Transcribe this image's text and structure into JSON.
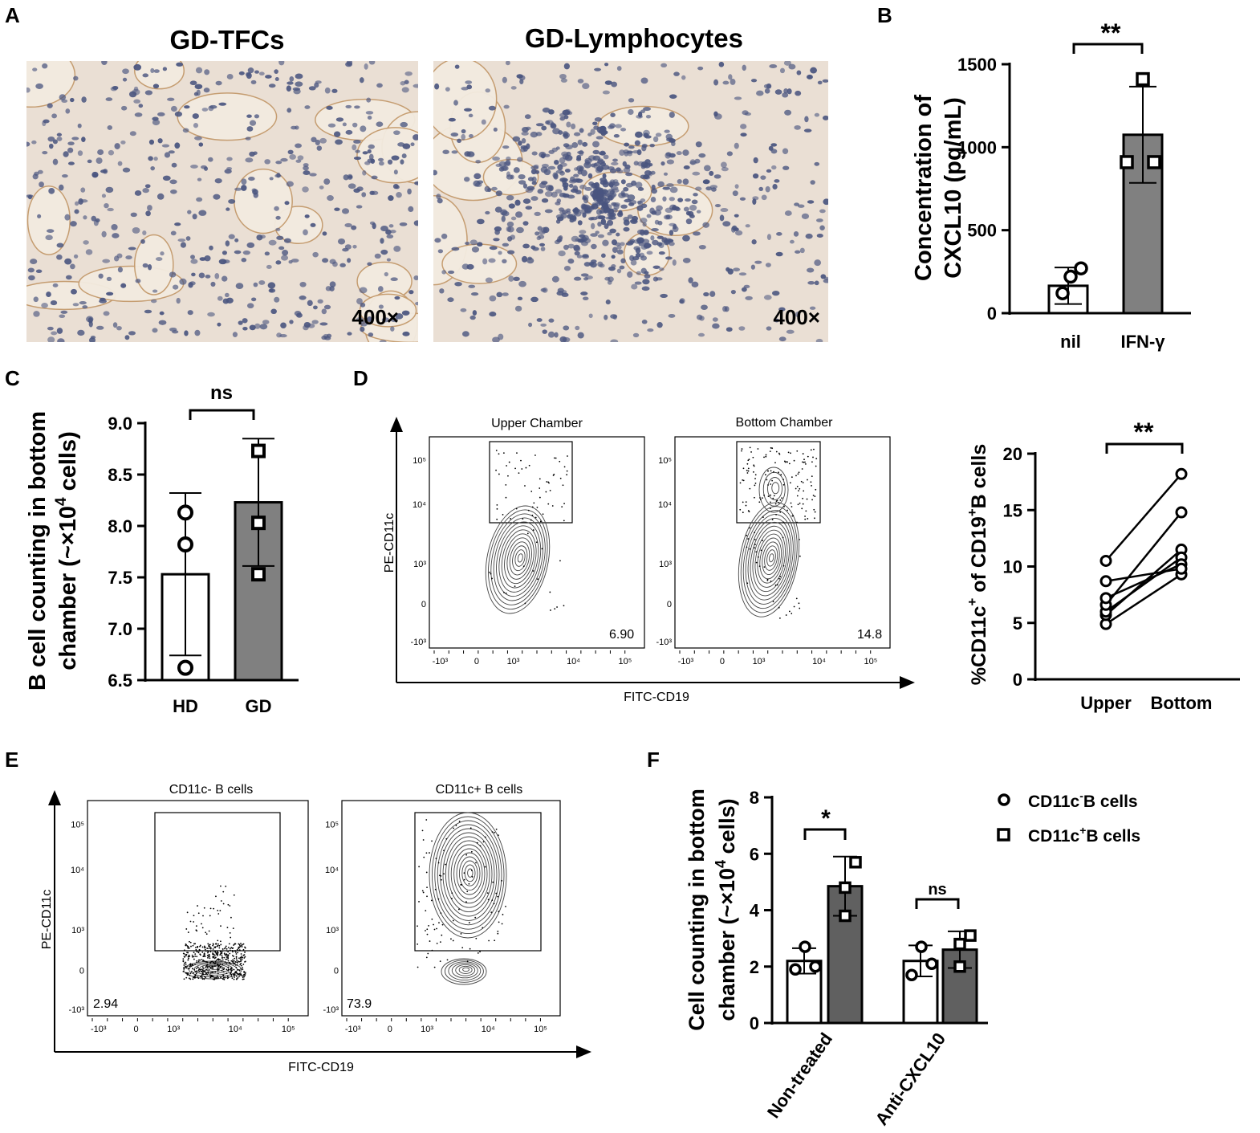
{
  "panel_letters": [
    "A",
    "B",
    "C",
    "D",
    "E",
    "F"
  ],
  "panel_a": {
    "title_left": "GD-TFCs",
    "title_right": "GD-Lymphocytes",
    "magnification_left": "400×",
    "magnification_right": "400×",
    "colors": {
      "background": "#eadfd4",
      "nuclei": "#4a557f",
      "follicle": "#f3ebe0",
      "stain": "#c49a6c"
    }
  },
  "chart_data": [
    {
      "panel": "B",
      "type": "bar",
      "categories": [
        "nil",
        "IFN-γ"
      ],
      "values": [
        165,
        1075
      ],
      "error": [
        110,
        290
      ],
      "points": [
        [
          120,
          220,
          270
        ],
        [
          910,
          910,
          1410
        ]
      ],
      "ylabel_line1": "Concentration of",
      "ylabel_line2": "CXCL10 (pg/mL)",
      "ylim": [
        0,
        1500
      ],
      "yticks": [
        "0",
        "500",
        "1000",
        "1500"
      ],
      "significance": "**",
      "bar_colors": [
        "#ffffff",
        "#808080"
      ]
    },
    {
      "panel": "C",
      "type": "bar",
      "categories": [
        "HD",
        "GD"
      ],
      "values": [
        7.53,
        8.23
      ],
      "error": [
        0.79,
        0.62
      ],
      "points": [
        [
          6.62,
          7.82,
          8.13
        ],
        [
          7.53,
          8.03,
          8.73
        ]
      ],
      "ylabel_line1": "B cell counting in bottom",
      "ylabel_line2_pre": "chamber (~×10",
      "ylabel_line2_sup": "4",
      "ylabel_line2_post": " cells)",
      "ylim": [
        6.5,
        9.0
      ],
      "yticks": [
        "6.5",
        "7.0",
        "7.5",
        "8.0",
        "8.5",
        "9.0"
      ],
      "significance": "ns",
      "bar_colors": [
        "#ffffff",
        "#808080"
      ]
    },
    {
      "panel": "D-right",
      "type": "scatter",
      "categories": [
        "Upper",
        "Bottom"
      ],
      "pairs": [
        [
          4.9,
          9.3
        ],
        [
          5.7,
          11.5
        ],
        [
          6.0,
          10.8
        ],
        [
          6.6,
          14.8
        ],
        [
          7.2,
          10.2
        ],
        [
          8.7,
          9.8
        ],
        [
          10.5,
          18.2
        ]
      ],
      "ylabel_pre": "%CD11c",
      "ylabel_sup1": "+",
      "ylabel_mid": " of CD19",
      "ylabel_sup2": "+",
      "ylabel_post": "B cells",
      "ylim": [
        0,
        20
      ],
      "yticks": [
        "0",
        "5",
        "10",
        "15",
        "20"
      ],
      "significance": "**"
    },
    {
      "panel": "F",
      "type": "bar",
      "categories": [
        "Non-treated",
        "Anti-CXCL10"
      ],
      "series": [
        {
          "name": "CD11c⁻B cells",
          "values": [
            2.2,
            2.2
          ],
          "error": [
            0.45,
            0.55
          ],
          "points": [
            [
              1.9,
              2.0,
              2.7
            ],
            [
              1.7,
              2.1,
              2.7
            ]
          ]
        },
        {
          "name": "CD11c⁺B cells",
          "values": [
            4.85,
            2.6
          ],
          "error": [
            1.05,
            0.65
          ],
          "points": [
            [
              3.8,
              4.8,
              5.7
            ],
            [
              2.0,
              2.8,
              3.1
            ]
          ]
        }
      ],
      "legend": {
        "item1_pre": "CD11c",
        "item1_sup": "-",
        "item1_post": "B cells",
        "item2_pre": "CD11c",
        "item2_sup": "+",
        "item2_post": "B cells",
        "placement": "top-right"
      },
      "ylabel_line1": "Cell counting in bottom",
      "ylabel_line2_pre": "chamber (~×10",
      "ylabel_line2_sup": "4",
      "ylabel_line2_post": " cells)",
      "ylim": [
        0,
        8
      ],
      "yticks": [
        "0",
        "2",
        "4",
        "6",
        "8"
      ],
      "significance": [
        "*",
        "ns"
      ],
      "bar_colors": [
        "#ffffff",
        "#606060"
      ]
    }
  ],
  "flow_d": {
    "plot_left_title": "Upper Chamber",
    "plot_right_title": "Bottom Chamber",
    "gate_left_value": "6.90",
    "gate_right_value": "14.8",
    "xlabel": "FITC-CD19",
    "ylabel": "PE-CD11c",
    "yticks": [
      "-10³",
      "0",
      "10³",
      "10⁴",
      "10⁵"
    ],
    "xticks": [
      "-10³",
      "0",
      "10³",
      "10⁴",
      "10⁵"
    ]
  },
  "flow_e": {
    "plot_left_title": "CD11c- B cells",
    "plot_right_title": "CD11c+ B cells",
    "gate_left_value": "2.94",
    "gate_right_value": "73.9",
    "xlabel": "FITC-CD19",
    "ylabel": "PE-CD11c",
    "yticks": [
      "-10³",
      "0",
      "10³",
      "10⁴",
      "10⁵"
    ],
    "xticks": [
      "-10³",
      "0",
      "10³",
      "10⁴",
      "10⁵"
    ]
  }
}
